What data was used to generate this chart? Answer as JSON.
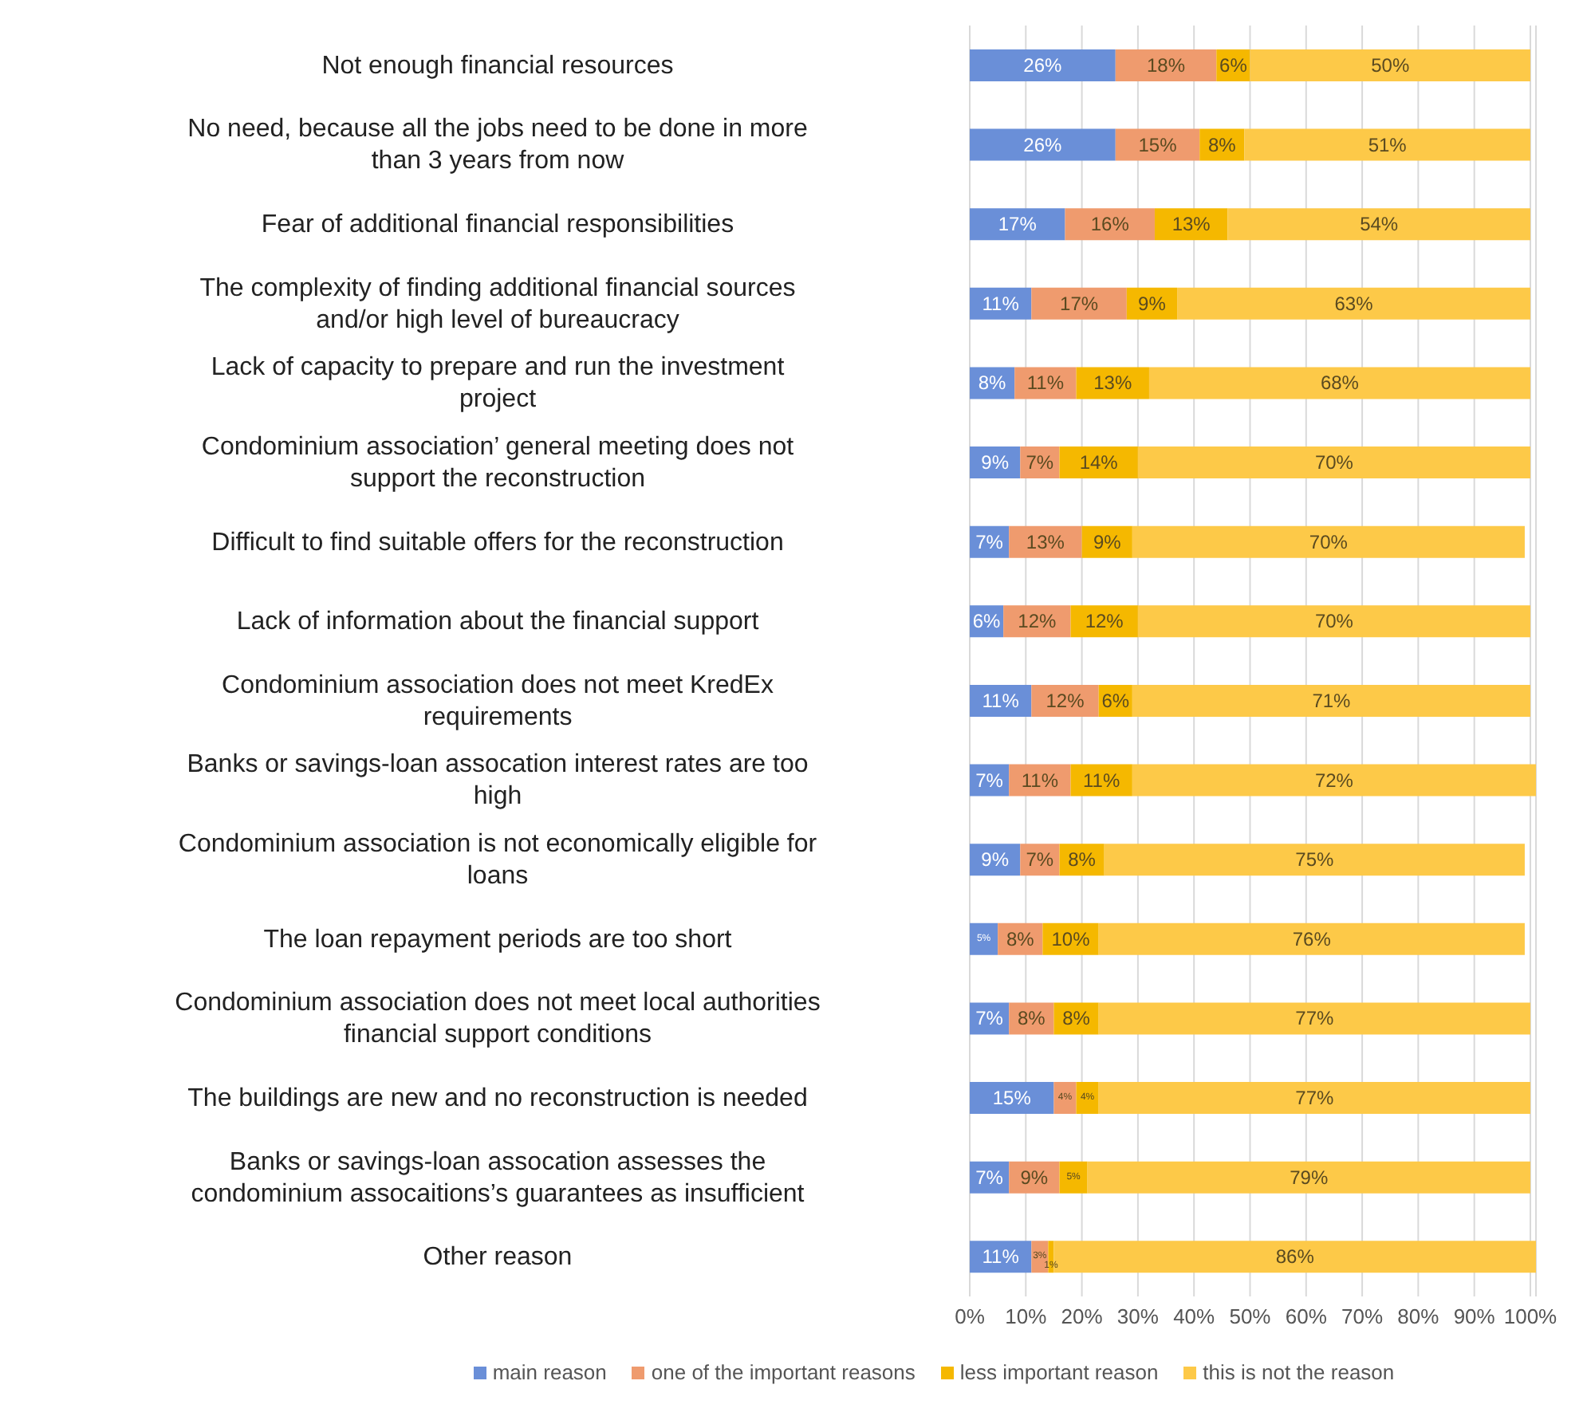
{
  "chart_data": {
    "type": "bar",
    "orientation": "horizontal",
    "stacked": true,
    "categories": [
      "Not enough financial resources",
      "No need, because all the jobs need to be done in more than 3 years from now",
      "Fear of additional financial responsibilities",
      "The complexity of finding additional financial sources and/or high level of bureaucracy",
      "Lack of capacity to prepare and run the investment project",
      "Condominium association’ general meeting does not support the reconstruction",
      "Difficult to find suitable offers for the reconstruction",
      "Lack of information about the financial support",
      "Condominium association does not meet KredEx requirements",
      "Banks or savings-loan assocation interest rates are too high",
      "Condominium association is not economically eligible for loans",
      "The loan repayment periods are too short",
      "Condominium association does not meet local authorities financial support conditions",
      "The buildings are new and no reconstruction is needed",
      "Banks or savings-loan assocation assesses the condominium assocaitions’s guarantees as insufficient",
      "Other reason"
    ],
    "series": [
      {
        "name": "main reason",
        "color": "#6a8fd8",
        "values": [
          26,
          26,
          17,
          11,
          8,
          9,
          7,
          6,
          11,
          7,
          9,
          5,
          7,
          15,
          7,
          11
        ],
        "value_labels": [
          "26%",
          "26%",
          "17%",
          "11%",
          "8%",
          "9%",
          "7%",
          "6%",
          "11%",
          "7%",
          "9%",
          "5%",
          "7%",
          "15%",
          "7%",
          "11%"
        ]
      },
      {
        "name": "one of the important reasons",
        "color": "#ef9b6e",
        "values": [
          18,
          15,
          16,
          17,
          11,
          7,
          13,
          12,
          12,
          11,
          7,
          8,
          8,
          4,
          9,
          3
        ],
        "value_labels": [
          "18%",
          "15%",
          "16%",
          "17%",
          "11%",
          "7%",
          "13%",
          "12%",
          "12%",
          "11%",
          "7%",
          "8%",
          "8%",
          "4%",
          "9%",
          "3%"
        ]
      },
      {
        "name": "less important reason",
        "color": "#f5b800",
        "values": [
          6,
          8,
          13,
          9,
          13,
          14,
          9,
          12,
          6,
          11,
          8,
          10,
          8,
          4,
          5,
          1
        ],
        "value_labels": [
          "6%",
          "8%",
          "13%",
          "9%",
          "13%",
          "14%",
          "9%",
          "12%",
          "6%",
          "11%",
          "8%",
          "10%",
          "8%",
          "4%",
          "5%",
          "1%"
        ]
      },
      {
        "name": "this is not the reason",
        "color": "#fdc948",
        "values": [
          50,
          51,
          54,
          63,
          68,
          70,
          70,
          70,
          71,
          72,
          75,
          76,
          77,
          77,
          79,
          86
        ],
        "value_labels": [
          "50%",
          "51%",
          "54%",
          "63%",
          "68%",
          "70%",
          "70%",
          "70%",
          "71%",
          "72%",
          "75%",
          "76%",
          "77%",
          "77%",
          "79%",
          "86%"
        ]
      }
    ],
    "xlim": [
      0,
      101
    ],
    "xticks": [
      {
        "value": 0,
        "label": "0%"
      },
      {
        "value": 10,
        "label": "10%"
      },
      {
        "value": 20,
        "label": "20%"
      },
      {
        "value": 30,
        "label": "30%"
      },
      {
        "value": 40,
        "label": "40%"
      },
      {
        "value": 50,
        "label": "50%"
      },
      {
        "value": 60,
        "label": "60%"
      },
      {
        "value": 70,
        "label": "70%"
      },
      {
        "value": 80,
        "label": "80%"
      },
      {
        "value": 90,
        "label": "90%"
      },
      {
        "value": 100,
        "label": "100%"
      }
    ],
    "grid": "x",
    "legend": "bottom"
  }
}
